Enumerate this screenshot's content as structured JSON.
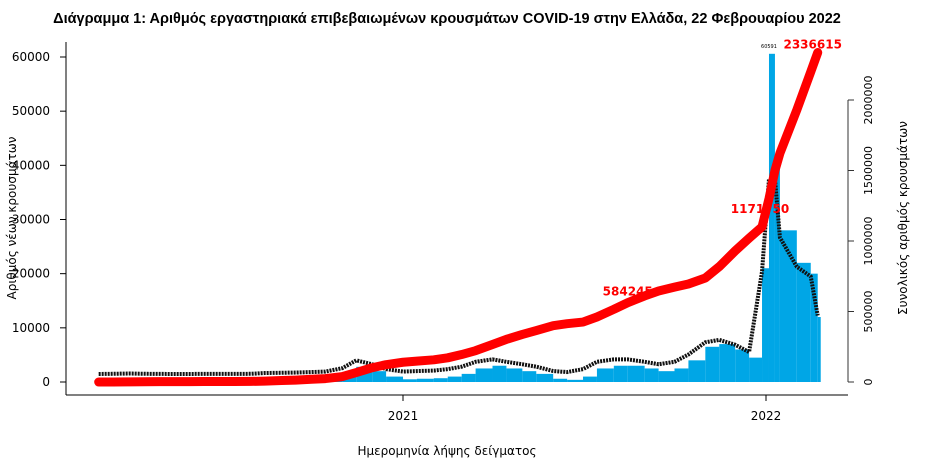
{
  "chart_data": {
    "type": "bar",
    "title": "Διάγραμμα 1: Αριθμός εργαστηριακά επιβεβαιωμένων κρουσμάτων COVID-19 στην Ελλάδα, 22 Φεβρουαρίου 2022",
    "xlabel": "Ημερομηνία λήψης δείγματος",
    "ylabel": "Αριθμός νέων κρουσμάτων",
    "y2label": "Συνολικός αριθμός κρουσμάτων",
    "ylim": [
      0,
      60000
    ],
    "y2lim": [
      0,
      2000000
    ],
    "yticks": [
      "0",
      "10000",
      "20000",
      "30000",
      "40000",
      "50000",
      "60000"
    ],
    "y2ticks": [
      "0",
      "500000",
      "1000000",
      "1500000",
      "2000000"
    ],
    "xticks": [
      {
        "date": "2021-01-01",
        "label": "2021"
      },
      {
        "date": "2022-01-01",
        "label": "2022"
      }
    ],
    "colors": {
      "daily": "#00a6e6",
      "average": "#111111",
      "cumulative": "#ff0000"
    },
    "x": [
      "2020-03-01",
      "2020-03-15",
      "2020-04-01",
      "2020-04-15",
      "2020-05-01",
      "2020-05-15",
      "2020-06-01",
      "2020-06-15",
      "2020-07-01",
      "2020-07-15",
      "2020-08-01",
      "2020-08-15",
      "2020-09-01",
      "2020-09-15",
      "2020-10-01",
      "2020-10-15",
      "2020-11-01",
      "2020-11-15",
      "2020-12-01",
      "2020-12-15",
      "2021-01-01",
      "2021-01-15",
      "2021-02-01",
      "2021-02-15",
      "2021-03-01",
      "2021-03-15",
      "2021-04-01",
      "2021-04-15",
      "2021-05-01",
      "2021-05-15",
      "2021-06-01",
      "2021-06-15",
      "2021-07-01",
      "2021-07-15",
      "2021-08-01",
      "2021-08-15",
      "2021-09-01",
      "2021-09-15",
      "2021-10-01",
      "2021-10-15",
      "2021-11-01",
      "2021-11-15",
      "2021-12-01",
      "2021-12-15",
      "2021-12-28",
      "2022-01-04",
      "2022-01-10",
      "2022-01-15",
      "2022-02-01",
      "2022-02-15",
      "2022-02-22"
    ],
    "daily": [
      0,
      40,
      100,
      50,
      15,
      10,
      10,
      20,
      20,
      30,
      40,
      200,
      250,
      300,
      400,
      500,
      1200,
      2800,
      2000,
      1000,
      500,
      600,
      700,
      1000,
      1500,
      2500,
      3000,
      2500,
      2000,
      1500,
      600,
      400,
      1000,
      2500,
      3000,
      3000,
      2500,
      2000,
      2500,
      4000,
      6500,
      7000,
      6000,
      4500,
      21000,
      60591,
      42000,
      28000,
      22000,
      20000,
      12000
    ],
    "cumulative": [
      7,
      228,
      1314,
      2170,
      2591,
      2810,
      2917,
      3121,
      3409,
      3910,
      4477,
      6177,
      10317,
      13678,
      19613,
      24302,
      38297,
      66637,
      101287,
      122969,
      140099,
      148107,
      157380,
      171524,
      194740,
      222281,
      266010,
      302430,
      337139,
      365074,
      399216,
      413473,
      425135,
      461196,
      515347,
      562818,
      610591,
      645556,
      672823,
      694913,
      737523,
      818019,
      930000,
      1020000,
      1100000,
      1300000,
      1500000,
      1622000,
      1930000,
      2200000,
      2336615
    ],
    "annotations": [
      {
        "date": "2021-08-20",
        "value": 584245,
        "label": "584245"
      },
      {
        "date": "2021-12-31",
        "value": 1171750,
        "label": "1171750"
      },
      {
        "date": "2022-02-22",
        "value": 2336615,
        "label": "2336615"
      },
      {
        "date": "2022-01-04",
        "value": 60591,
        "label": "60591",
        "axis": "left"
      }
    ]
  }
}
